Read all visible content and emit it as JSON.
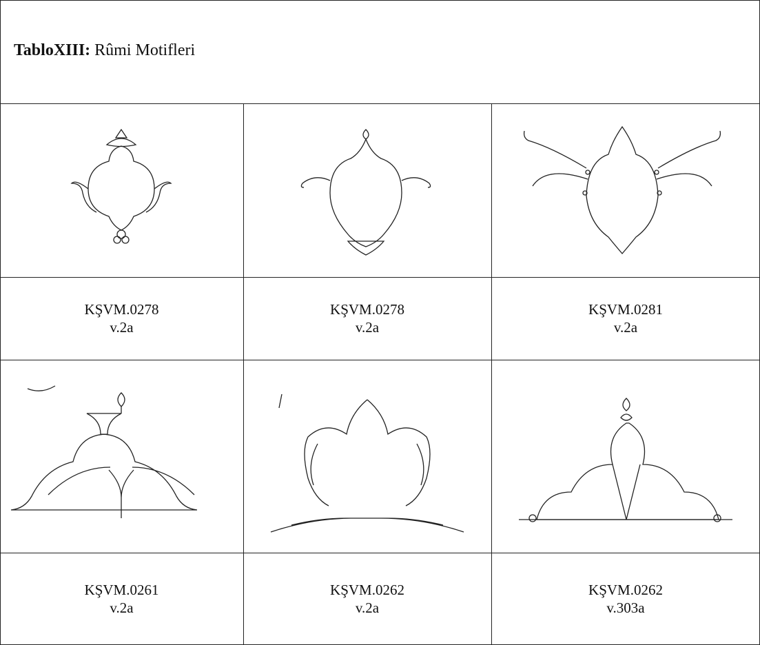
{
  "title": {
    "label": "TabloXIII:",
    "text": "Rûmi Motifleri"
  },
  "rows": [
    [
      {
        "code": "KŞVM.0278",
        "folio": "v.2a"
      },
      {
        "code": "KŞVM.0278",
        "folio": "v.2a"
      },
      {
        "code": "KŞVM.0281",
        "folio": "v.2a"
      }
    ],
    [
      {
        "code": "KŞVM.0261",
        "folio": "v.2a"
      },
      {
        "code": "KŞVM.0262",
        "folio": "v.2a"
      },
      {
        "code": "KŞVM.0262",
        "folio": "v.303a"
      }
    ]
  ]
}
